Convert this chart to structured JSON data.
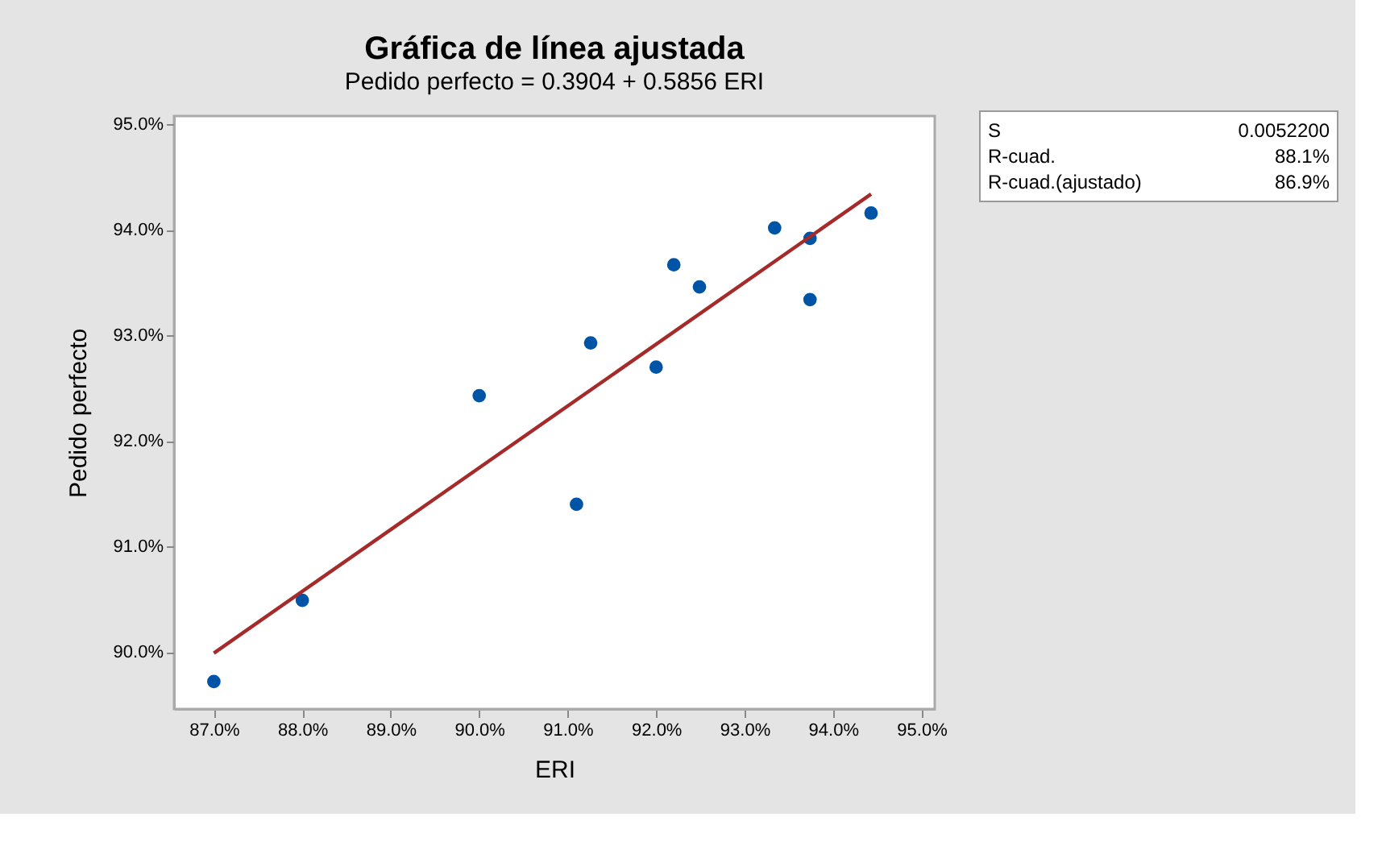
{
  "chart_data": {
    "type": "scatter",
    "title": "Gráfica de línea ajustada",
    "subtitle": "Pedido perfecto = 0.3904 + 0.5856 ERI",
    "xlabel": "ERI",
    "ylabel": "Pedido perfecto",
    "series": [
      {
        "marker": "circle",
        "color": "#0054a6",
        "x": [
          87.0,
          88.0,
          90.0,
          91.1,
          91.26,
          92.0,
          92.2,
          92.49,
          93.34,
          93.74,
          93.74,
          94.43
        ],
        "values": [
          89.72,
          90.49,
          92.43,
          91.4,
          92.93,
          92.7,
          93.67,
          93.46,
          94.02,
          93.92,
          93.34,
          94.16
        ]
      },
      {
        "type": "line",
        "marker": "none",
        "color": "#a52a2a",
        "x": [
          87.0,
          94.43
        ],
        "values": [
          89.99,
          94.34
        ]
      }
    ],
    "xlim": [
      86.55,
      95.15
    ],
    "ylim": [
      89.46,
      95.08
    ],
    "xticks": [
      {
        "value": 87,
        "label": "87.0%"
      },
      {
        "value": 88,
        "label": "88.0%"
      },
      {
        "value": 89,
        "label": "89.0%"
      },
      {
        "value": 90,
        "label": "90.0%"
      },
      {
        "value": 91,
        "label": "91.0%"
      },
      {
        "value": 92,
        "label": "92.0%"
      },
      {
        "value": 93,
        "label": "93.0%"
      },
      {
        "value": 94,
        "label": "94.0%"
      },
      {
        "value": 95,
        "label": "95.0%"
      }
    ],
    "yticks": [
      {
        "value": 90,
        "label": "90.0%"
      },
      {
        "value": 91,
        "label": "91.0%"
      },
      {
        "value": 92,
        "label": "92.0%"
      },
      {
        "value": 93,
        "label": "93.0%"
      },
      {
        "value": 94,
        "label": "94.0%"
      },
      {
        "value": 95,
        "label": "95.0%"
      }
    ],
    "annotations": [
      "S",
      "0.0052200",
      "R-cuad.",
      "88.1%",
      "R-cuad.(ajustado)",
      "86.9%"
    ],
    "grid": false
  }
}
